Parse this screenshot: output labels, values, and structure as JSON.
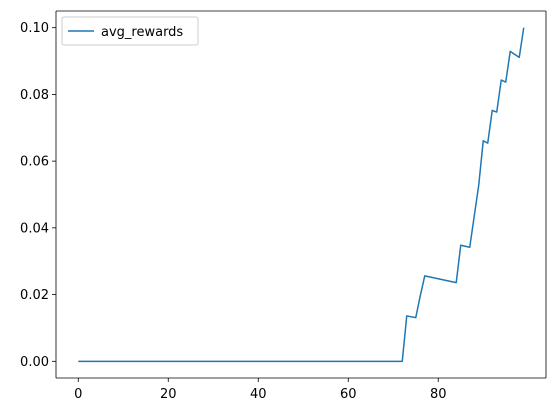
{
  "chart_data": {
    "type": "line",
    "title": "",
    "xlabel": "",
    "ylabel": "",
    "xlim": [
      -4.95,
      103.95
    ],
    "ylim": [
      -0.005,
      0.105
    ],
    "xticks": [
      0,
      20,
      40,
      60,
      80
    ],
    "yticks": [
      0.0,
      0.02,
      0.04,
      0.06,
      0.08,
      0.1
    ],
    "xtick_labels": [
      "0",
      "20",
      "40",
      "60",
      "80"
    ],
    "ytick_labels": [
      "0.00",
      "0.02",
      "0.04",
      "0.06",
      "0.08",
      "0.10"
    ],
    "grid": false,
    "legend": {
      "position": "upper-left",
      "entries": [
        "avg_rewards"
      ]
    },
    "series": [
      {
        "name": "avg_rewards",
        "color": "#1f77b4",
        "x": [
          0,
          72,
          73,
          75,
          76,
          77,
          84,
          85,
          86,
          87,
          88,
          89,
          90,
          91,
          92,
          93,
          94,
          95,
          96,
          97,
          98,
          99
        ],
        "y": [
          0.0,
          0.0,
          0.0136,
          0.0131,
          0.0196,
          0.0256,
          0.0236,
          0.0348,
          0.0345,
          0.0342,
          0.0435,
          0.0528,
          0.0661,
          0.0654,
          0.0752,
          0.0747,
          0.0843,
          0.0837,
          0.0929,
          0.092,
          0.0911,
          0.1
        ]
      }
    ]
  }
}
